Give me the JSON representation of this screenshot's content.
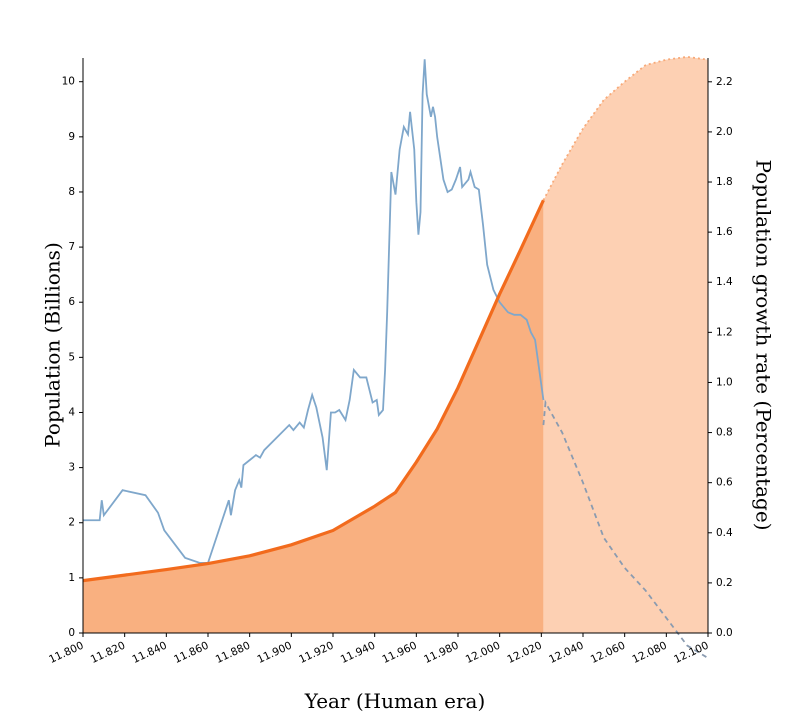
{
  "chart_data": {
    "type": "line",
    "x_label": "Year (Human era)",
    "y_label": "Population (Billions)",
    "y2_label": "Population growth rate (Percentage)",
    "xlim": [
      11800,
      12100
    ],
    "xticks": [
      {
        "value": 11800,
        "label": "11.800"
      },
      {
        "value": 11820,
        "label": "11.820"
      },
      {
        "value": 11840,
        "label": "11.840"
      },
      {
        "value": 11860,
        "label": "11.860"
      },
      {
        "value": 11880,
        "label": "11.880"
      },
      {
        "value": 11900,
        "label": "11.900"
      },
      {
        "value": 11920,
        "label": "11.920"
      },
      {
        "value": 11940,
        "label": "11.940"
      },
      {
        "value": 11960,
        "label": "11.960"
      },
      {
        "value": 11980,
        "label": "11.980"
      },
      {
        "value": 12000,
        "label": "12.000"
      },
      {
        "value": 12020,
        "label": "12.020"
      },
      {
        "value": 12040,
        "label": "12.040"
      },
      {
        "value": 12060,
        "label": "12.060"
      },
      {
        "value": 12080,
        "label": "12.080"
      },
      {
        "value": 12100,
        "label": "12.100"
      }
    ],
    "ylim": [
      0,
      10.43
    ],
    "yticks": [
      0,
      1,
      2,
      3,
      4,
      5,
      6,
      7,
      8,
      9,
      10
    ],
    "y2lim": [
      0,
      2.295
    ],
    "y2ticks": [
      {
        "value": 0,
        "label": "0.0"
      },
      0.2,
      0.4,
      0.6,
      0.8,
      {
        "value": 1,
        "label": "1.0"
      },
      1.2,
      1.4,
      1.6,
      1.8,
      {
        "value": 2,
        "label": "2.0"
      },
      2.2
    ],
    "series": [
      {
        "axis": "y",
        "color": "#f26b1d",
        "fill": "#f9b080",
        "line_style": "solid",
        "x": [
          11800,
          11820,
          11840,
          11860,
          11880,
          11900,
          11920,
          11940,
          11950,
          11960,
          11970,
          11980,
          11990,
          12000,
          12010,
          12021
        ],
        "values": [
          0.95,
          1.05,
          1.15,
          1.26,
          1.4,
          1.6,
          1.86,
          2.3,
          2.55,
          3.1,
          3.7,
          4.45,
          5.3,
          6.15,
          6.95,
          7.85
        ]
      },
      {
        "axis": "y",
        "color": "#f7a978",
        "fill": "#fdd0b3",
        "line_style": "dotted",
        "x": [
          12021,
          12030,
          12040,
          12050,
          12060,
          12070,
          12080,
          12090,
          12100
        ],
        "values": [
          7.85,
          8.5,
          9.15,
          9.67,
          10.0,
          10.3,
          10.4,
          10.45,
          10.4
        ]
      },
      {
        "axis": "y2",
        "color": "#7fa7cb",
        "line_style": "solid",
        "x": [
          11800,
          11808,
          11809,
          11810,
          11819,
          11830,
          11836,
          11839,
          11849,
          11856,
          11860,
          11870,
          11871,
          11873,
          11875,
          11876,
          11877,
          11880,
          11883,
          11885,
          11887,
          11899,
          11901,
          11904,
          11906,
          11908,
          11910,
          11912,
          11915,
          11917,
          11919,
          11921,
          11923,
          11926,
          11928,
          11930,
          11933,
          11936,
          11939,
          11941,
          11942,
          11944,
          11945,
          11946,
          11948,
          11950,
          11952,
          11954,
          11956,
          11957,
          11959,
          11960,
          11961,
          11962,
          11963,
          11964,
          11965,
          11967,
          11968,
          11969,
          11970,
          11973,
          11975,
          11977,
          11979,
          11981,
          11982,
          11985,
          11986,
          11988,
          11990,
          11992,
          11994,
          11997,
          12000,
          12004,
          12007,
          12010,
          12013,
          12015,
          12017,
          12019,
          12021
        ],
        "values": [
          0.45,
          0.45,
          0.53,
          0.47,
          0.57,
          0.55,
          0.48,
          0.41,
          0.3,
          0.28,
          0.28,
          0.53,
          0.47,
          0.57,
          0.61,
          0.58,
          0.67,
          0.69,
          0.71,
          0.7,
          0.73,
          0.83,
          0.81,
          0.84,
          0.82,
          0.89,
          0.95,
          0.9,
          0.78,
          0.65,
          0.88,
          0.88,
          0.89,
          0.85,
          0.93,
          1.05,
          1.02,
          1.02,
          0.92,
          0.93,
          0.87,
          0.89,
          1.05,
          1.28,
          1.84,
          1.75,
          1.93,
          2.02,
          1.99,
          2.08,
          1.93,
          1.72,
          1.59,
          1.68,
          2.15,
          2.29,
          2.15,
          2.06,
          2.1,
          2.06,
          1.98,
          1.81,
          1.76,
          1.77,
          1.81,
          1.86,
          1.78,
          1.81,
          1.84,
          1.78,
          1.77,
          1.63,
          1.47,
          1.37,
          1.32,
          1.28,
          1.27,
          1.27,
          1.25,
          1.2,
          1.17,
          1.05,
          0.93
        ]
      },
      {
        "axis": "y2",
        "color": "#8a9bb0",
        "line_style": "dashed",
        "x": [
          12021,
          12022,
          12030,
          12040,
          12050,
          12060,
          12070,
          12080,
          12090,
          12100
        ],
        "values": [
          0.83,
          0.92,
          0.8,
          0.6,
          0.38,
          0.26,
          0.17,
          0.06,
          -0.05,
          -0.1
        ]
      }
    ]
  }
}
